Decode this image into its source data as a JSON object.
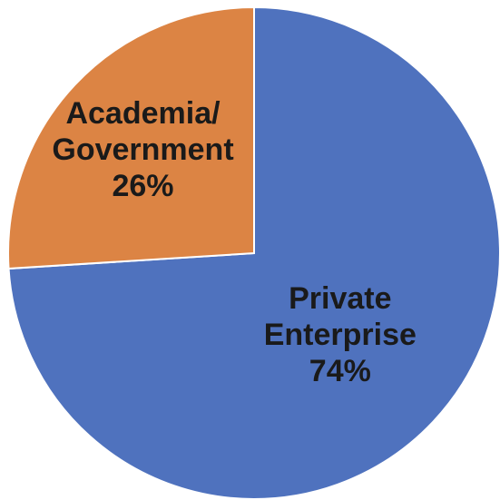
{
  "chart_data": {
    "type": "pie",
    "title": "",
    "slices": [
      {
        "label_lines": [
          "Private",
          "Enterprise"
        ],
        "percent_label": "74%",
        "value": 74,
        "color": "#4f72be"
      },
      {
        "label_lines": [
          "Academia/",
          "Government"
        ],
        "percent_label": "26%",
        "value": 26,
        "color": "#dc8444"
      }
    ],
    "start_angle_deg": 0,
    "direction": "clockwise",
    "legend": "none",
    "labels_position": "inside"
  }
}
